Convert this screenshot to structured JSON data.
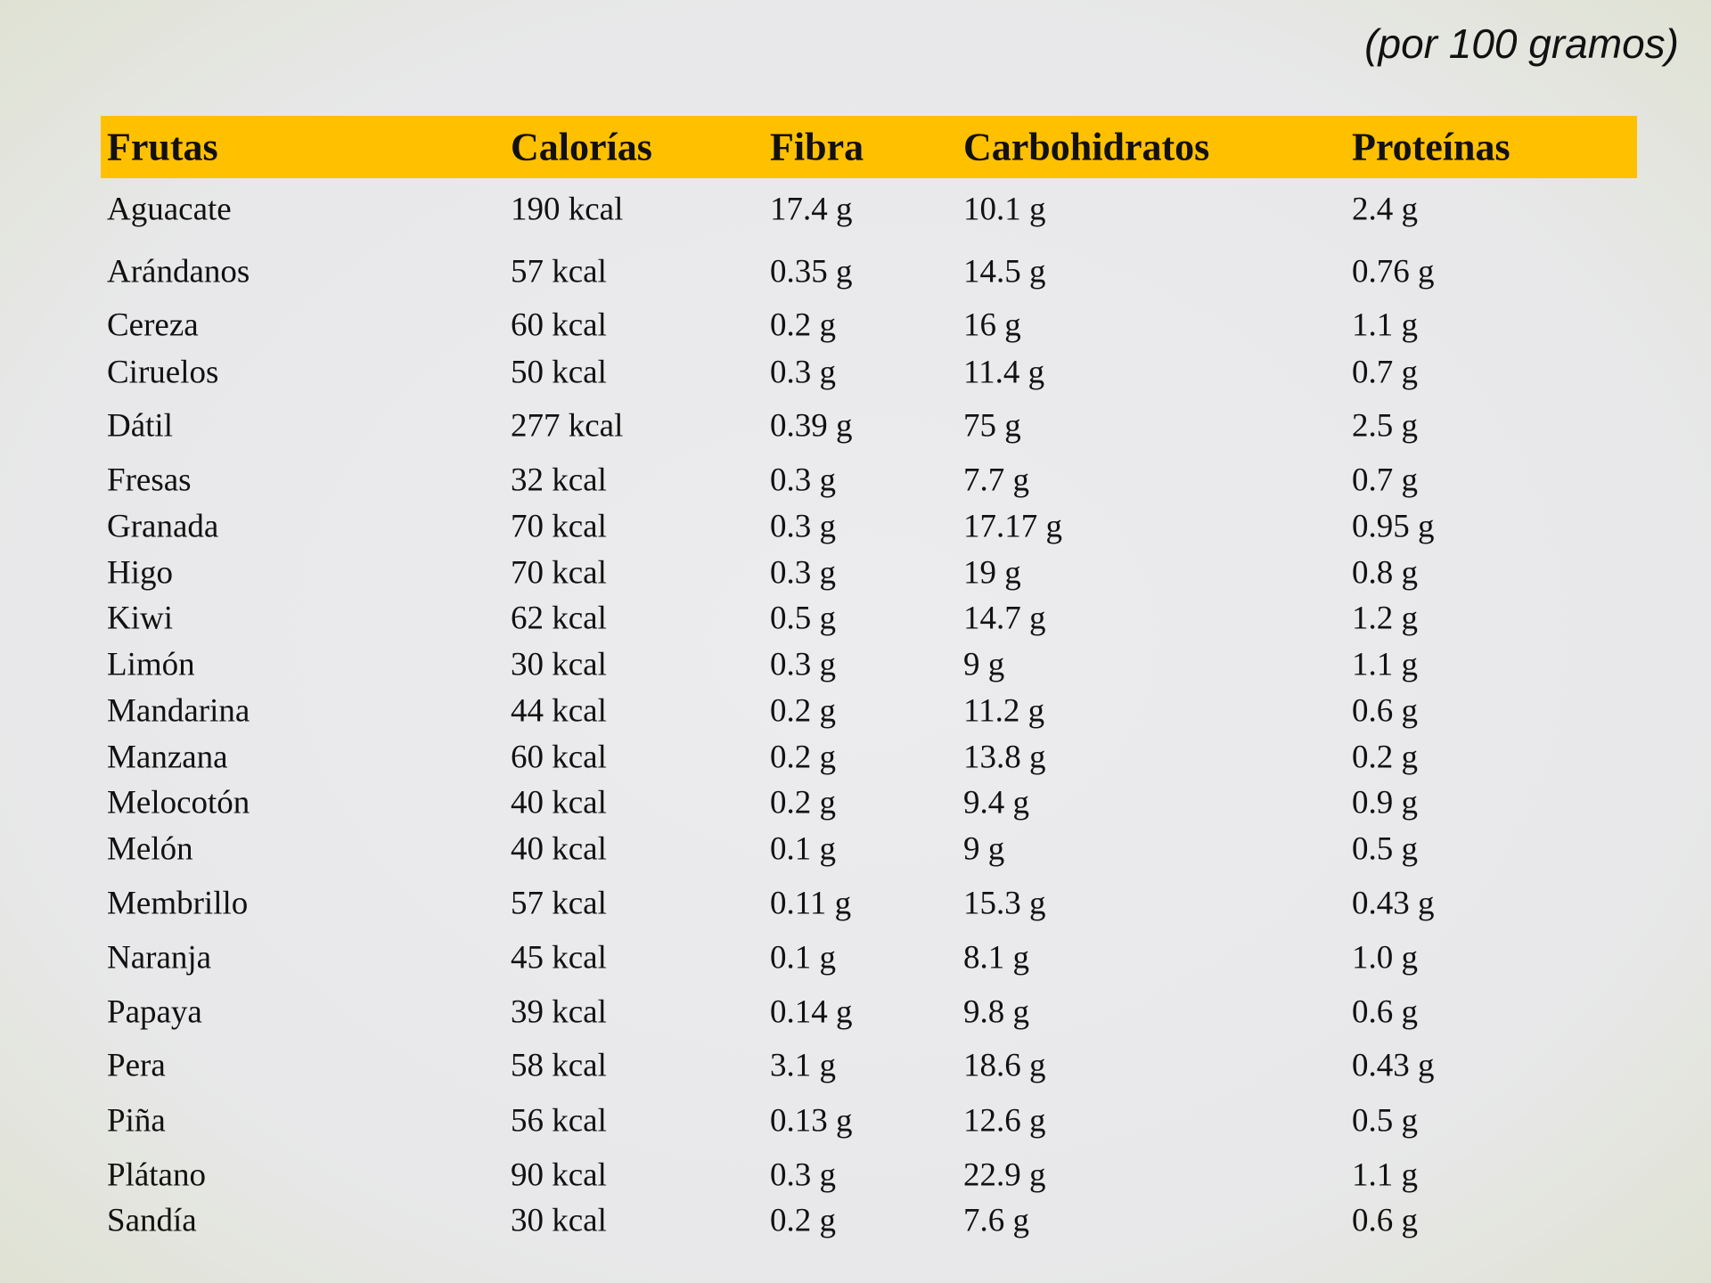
{
  "note": "(por 100 gramos)",
  "table": {
    "header": [
      "Frutas",
      "Calorías",
      "Fibra",
      "Carbohidratos",
      "Proteínas"
    ],
    "rows": [
      [
        "Aguacate",
        "190 kcal",
        "17.4 g",
        "10.1 g",
        "2.4 g"
      ],
      [
        "Arándanos",
        "57 kcal",
        "0.35 g",
        "14.5 g",
        "0.76 g"
      ],
      [
        "Cereza",
        "60 kcal",
        "0.2 g",
        "16 g",
        "1.1 g"
      ],
      [
        "Ciruelos",
        "50 kcal",
        "0.3 g",
        "11.4 g",
        "0.7 g"
      ],
      [
        "Dátil",
        "277 kcal",
        "0.39 g",
        "75 g",
        "2.5 g"
      ],
      [
        "Fresas",
        "32 kcal",
        "0.3 g",
        "7.7 g",
        "0.7 g"
      ],
      [
        "Granada",
        "70 kcal",
        "0.3 g",
        "17.17 g",
        "0.95 g"
      ],
      [
        "Higo",
        "70 kcal",
        "0.3 g",
        "19 g",
        "0.8 g"
      ],
      [
        "Kiwi",
        "62 kcal",
        "0.5 g",
        "14.7 g",
        "1.2 g"
      ],
      [
        "Limón",
        "30 kcal",
        "0.3 g",
        "9 g",
        "1.1 g"
      ],
      [
        "Mandarina",
        "44 kcal",
        "0.2 g",
        "11.2 g",
        "0.6 g"
      ],
      [
        "Manzana",
        "60 kcal",
        "0.2 g",
        "13.8 g",
        "0.2 g"
      ],
      [
        "Melocotón",
        "40 kcal",
        "0.2 g",
        "9.4 g",
        "0.9 g"
      ],
      [
        "Melón",
        "40 kcal",
        "0.1 g",
        "9 g",
        "0.5 g"
      ],
      [
        "Membrillo",
        "57 kcal",
        "0.11 g",
        "15.3 g",
        "0.43 g"
      ],
      [
        "Naranja",
        "45 kcal",
        "0.1 g",
        "8.1 g",
        "1.0 g"
      ],
      [
        "Papaya",
        "39 kcal",
        "0.14 g",
        "9.8 g",
        "0.6 g"
      ],
      [
        "Pera",
        "58 kcal",
        "3.1 g",
        "18.6 g",
        "0.43 g"
      ],
      [
        "Piña",
        "56 kcal",
        "0.13 g",
        "12.6 g",
        "0.5 g"
      ],
      [
        "Plátano",
        "90 kcal",
        "0.3 g",
        "22.9 g",
        "1.1 g"
      ],
      [
        "Sandía",
        "30 kcal",
        "0.2 g",
        "7.6 g",
        "0.6 g"
      ]
    ]
  }
}
